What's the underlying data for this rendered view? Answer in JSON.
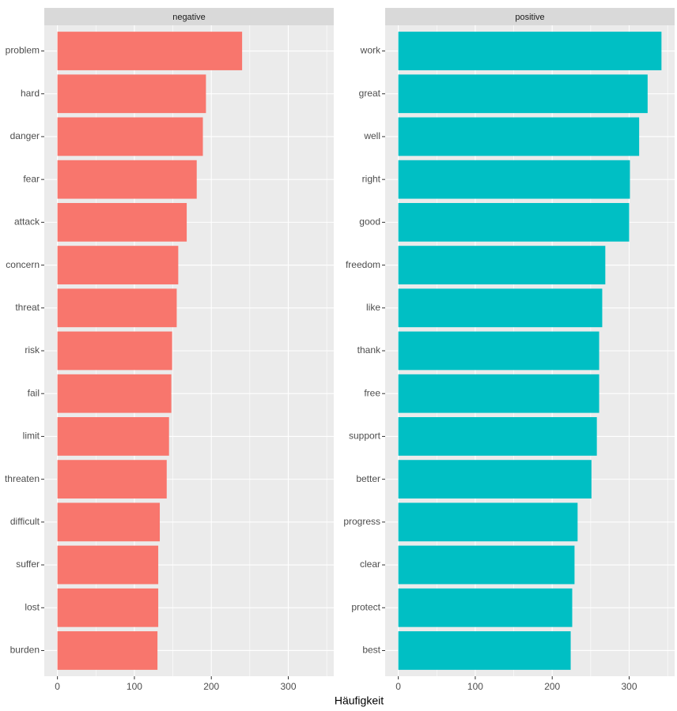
{
  "chart_data": [
    {
      "type": "bar",
      "orientation": "horizontal",
      "title": "negative",
      "color": "#f8766d",
      "categories": [
        "problem",
        "hard",
        "danger",
        "fear",
        "attack",
        "concern",
        "threat",
        "risk",
        "fail",
        "limit",
        "threaten",
        "difficult",
        "suffer",
        "lost",
        "burden"
      ],
      "values": [
        240,
        193,
        189,
        181,
        168,
        157,
        155,
        149,
        148,
        145,
        142,
        133,
        131,
        131,
        130
      ],
      "xlim": [
        -17.1,
        359.1
      ],
      "xticks": [
        0,
        100,
        200,
        300
      ],
      "grid": true
    },
    {
      "type": "bar",
      "orientation": "horizontal",
      "title": "positive",
      "color": "#00bfc4",
      "categories": [
        "work",
        "great",
        "well",
        "right",
        "good",
        "freedom",
        "like",
        "thank",
        "free",
        "support",
        "better",
        "progress",
        "clear",
        "protect",
        "best"
      ],
      "values": [
        342,
        324,
        313,
        301,
        300,
        269,
        265,
        261,
        261,
        258,
        251,
        233,
        229,
        226,
        224
      ],
      "xlim": [
        -17.1,
        359.1
      ],
      "xticks": [
        0,
        100,
        200,
        300
      ],
      "grid": true
    }
  ],
  "x_label": "Häufigkeit"
}
